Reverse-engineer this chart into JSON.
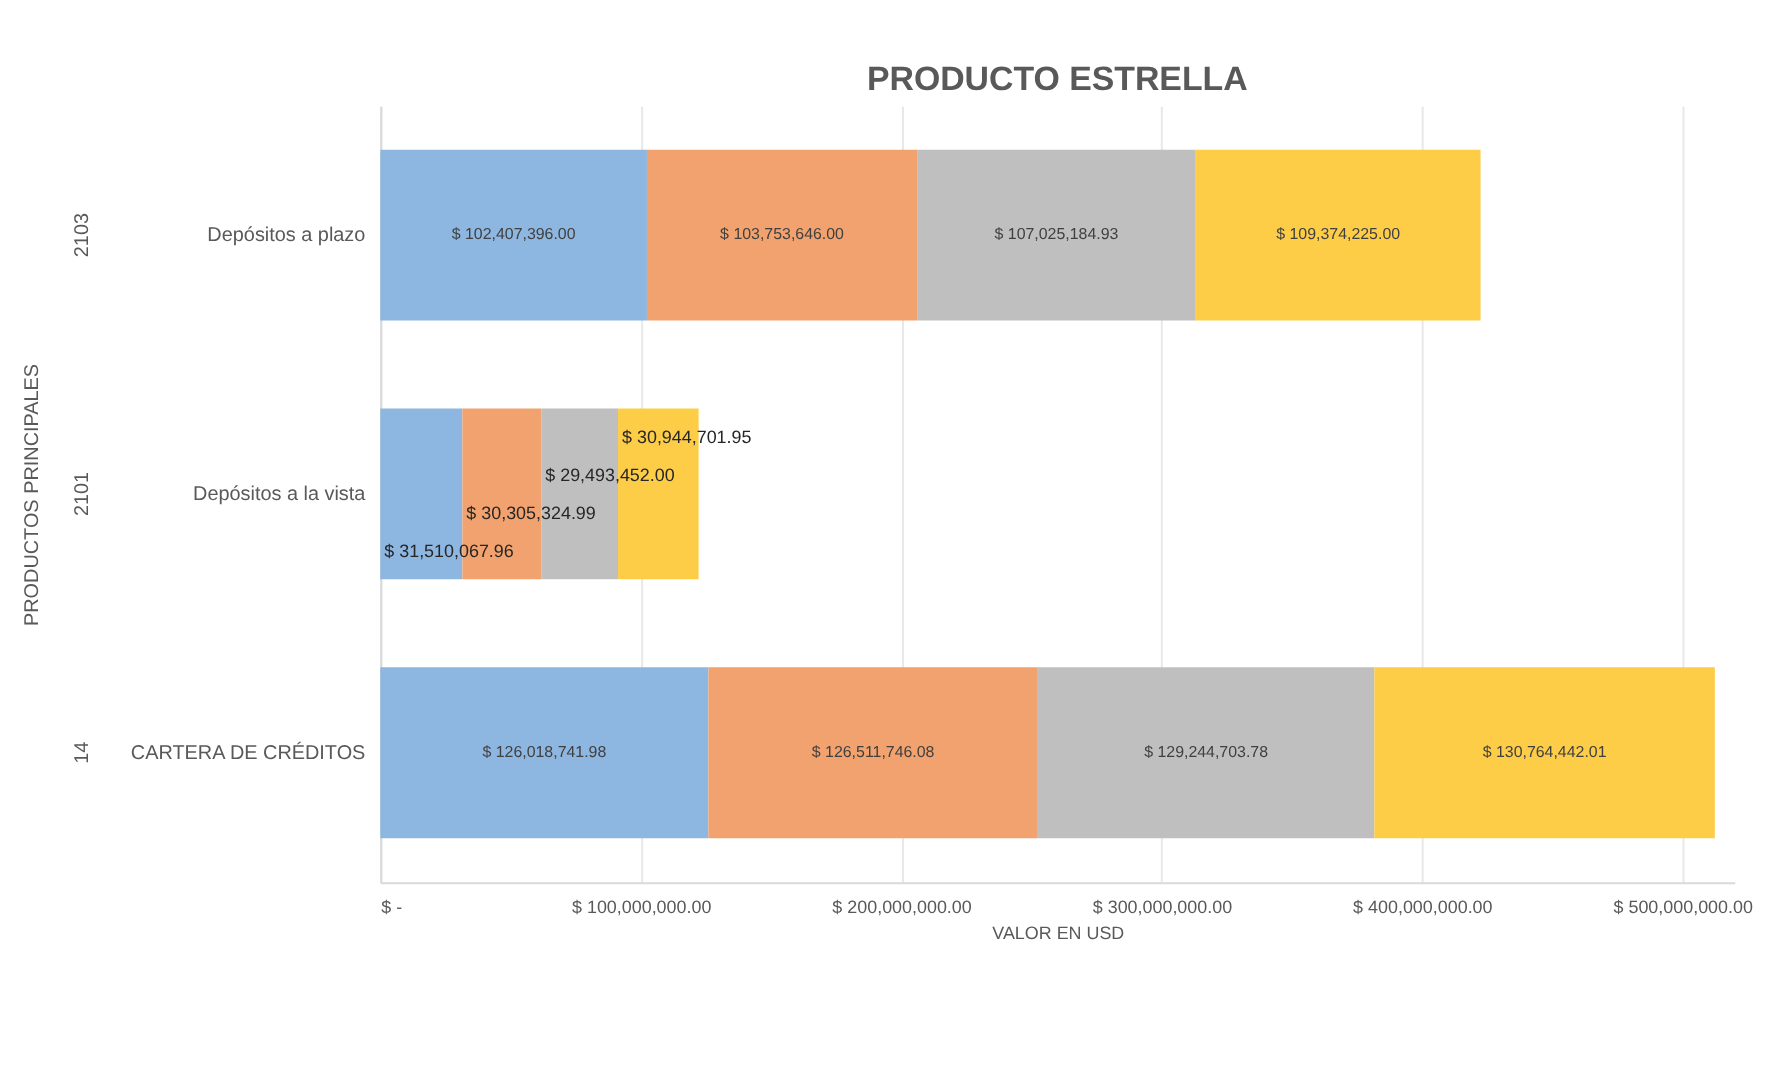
{
  "chart_data": {
    "type": "bar",
    "orientation": "horizontal",
    "stacked": true,
    "title": "PRODUCTO ESTRELLA",
    "xlabel": "VALOR EN USD",
    "ylabel": "PRODUCTOS PRINCIPALES",
    "categories": [
      "Depósitos a plazo",
      "Depósitos a la vista",
      "CARTERA DE CRÉDITOS"
    ],
    "series": [
      {
        "color": "#8db6e0",
        "values": [
          102407396.0,
          31510067.96,
          126018741.98
        ],
        "value_labels": [
          "$ 102,407,396.00",
          "$ 31,510,067.96",
          "$ 126,018,741.98"
        ]
      },
      {
        "color": "#f2a26e",
        "values": [
          103753646.0,
          30305324.99,
          126511746.08
        ],
        "value_labels": [
          "$ 103,753,646.00",
          "$ 30,305,324.99",
          "$ 126,511,746.08"
        ]
      },
      {
        "color": "#bfbfbf",
        "values": [
          107025184.93,
          29493452.0,
          129244703.78
        ],
        "value_labels": [
          "$ 107,025,184.93",
          "$ 29,493,452.00",
          "$ 129,244,703.78"
        ]
      },
      {
        "color": "#fdcd48",
        "values": [
          109374225.0,
          30944701.95,
          130764442.01
        ],
        "value_labels": [
          "$ 109,374,225.00",
          "$ 30,944,701.95",
          "$ 130,764,442.01"
        ]
      }
    ],
    "annotations": [
      "2103",
      "2101",
      "14"
    ],
    "xlim": [
      0,
      520000000
    ],
    "xticks": [
      {
        "value": 0,
        "label": "$ -"
      },
      {
        "value": 100000000,
        "label": "$ 100,000,000.00"
      },
      {
        "value": 200000000,
        "label": "$ 200,000,000.00"
      },
      {
        "value": 300000000,
        "label": "$ 300,000,000.00"
      },
      {
        "value": 400000000,
        "label": "$ 400,000,000.00"
      },
      {
        "value": 500000000,
        "label": "$ 500,000,000.00"
      }
    ],
    "grid": "x",
    "legend": false
  }
}
